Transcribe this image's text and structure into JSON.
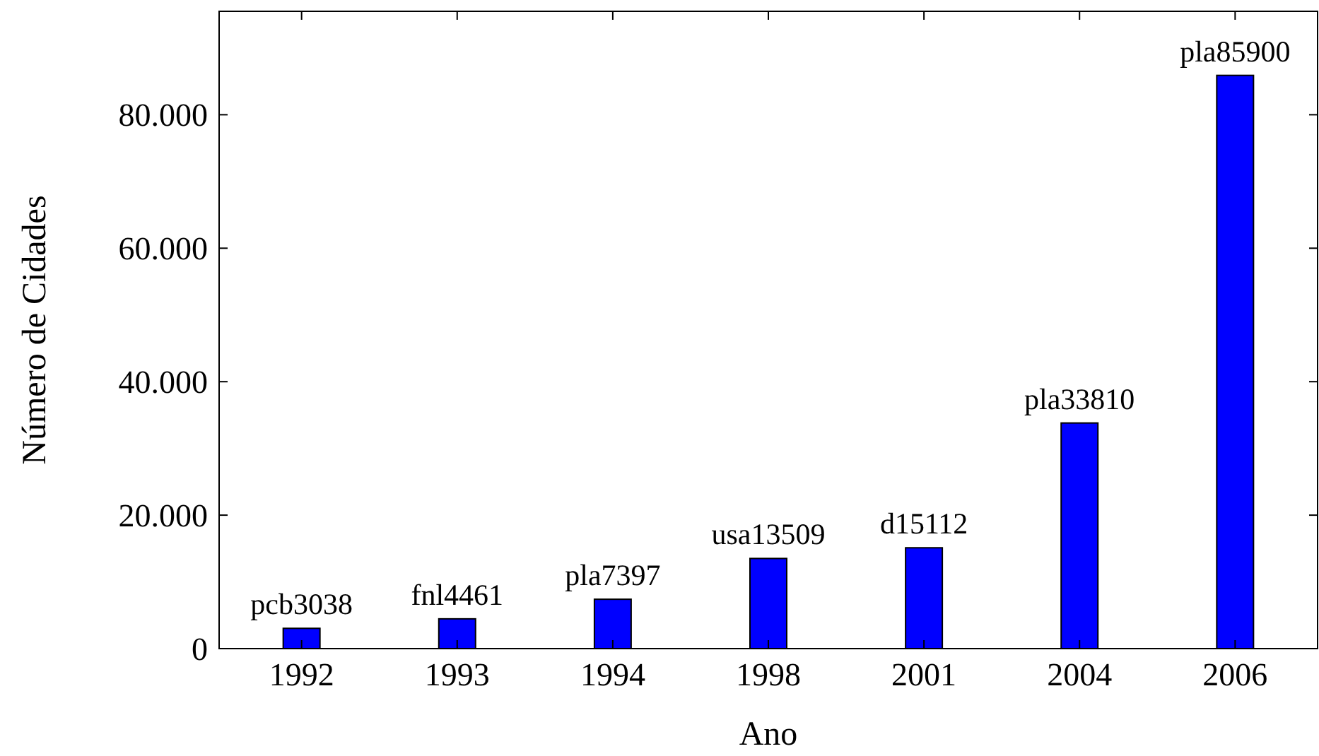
{
  "chart_data": {
    "type": "bar",
    "xlabel": "Ano",
    "ylabel": "Número de Cidades",
    "categories": [
      "1992",
      "1993",
      "1994",
      "1998",
      "2001",
      "2004",
      "2006"
    ],
    "values": [
      3038,
      4461,
      7397,
      13509,
      15112,
      33810,
      85900
    ],
    "value_labels": [
      "pcb3038",
      "fnl4461",
      "pla7397",
      "usa13509",
      "d15112",
      "pla33810",
      "pla85900"
    ],
    "color": "#0000ff",
    "ylim": [
      0,
      95500
    ],
    "yticks": [
      0,
      {
        "value": 20000,
        "label": "20.000"
      },
      {
        "value": 40000,
        "label": "40.000"
      },
      {
        "value": 60000,
        "label": "60.000"
      },
      {
        "value": 80000,
        "label": "80.000"
      }
    ],
    "grid": false
  }
}
